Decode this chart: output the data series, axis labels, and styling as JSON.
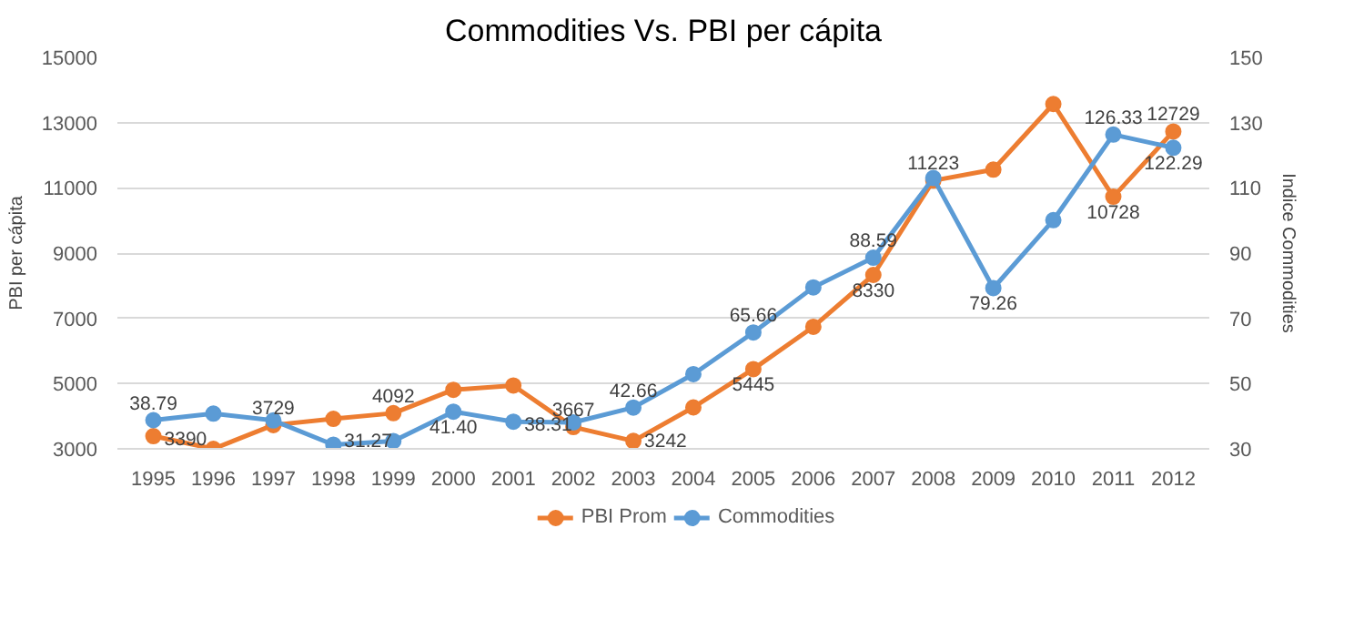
{
  "chart_data": {
    "type": "line",
    "title": "Commodities Vs. PBI per cápita",
    "ylabel": "PBI per cápita",
    "y2label": "Indice Commodities",
    "categories": [
      "1995",
      "1996",
      "1997",
      "1998",
      "1999",
      "2000",
      "2001",
      "2002",
      "2003",
      "2004",
      "2005",
      "2006",
      "2007",
      "2008",
      "2009",
      "2010",
      "2011",
      "2012"
    ],
    "series": [
      {
        "name": "PBI Prom",
        "color": "#ed7d31",
        "values": [
          3390,
          3000,
          3729,
          3920,
          4092,
          4810,
          4940,
          3667,
          3242,
          4270,
          5445,
          6740,
          8330,
          11223,
          11560,
          13570,
          10728,
          12729
        ],
        "value_labels": [
          "3390",
          null,
          "3729",
          null,
          "4092",
          null,
          null,
          "3667",
          "3242",
          null,
          "5445",
          null,
          "8330",
          "11223",
          null,
          null,
          "10728",
          "12729"
        ]
      },
      {
        "name": "Commodities",
        "color": "#5b9bd5",
        "axis": "y2",
        "values": [
          38.79,
          40.8,
          38.7,
          31.27,
          32.4,
          41.4,
          38.31,
          38.1,
          42.66,
          52.9,
          65.66,
          79.5,
          88.59,
          113.0,
          79.26,
          100.1,
          126.33,
          122.29
        ],
        "value_labels": [
          "38.79",
          null,
          null,
          "31.27",
          null,
          "41.40",
          "38.31",
          null,
          "42.66",
          null,
          "65.66",
          null,
          "88.59",
          null,
          "79.26",
          null,
          "126.33",
          "122.29"
        ]
      }
    ],
    "ylim": [
      3000,
      15000
    ],
    "yticks": [
      3000,
      5000,
      7000,
      9000,
      11000,
      13000,
      15000
    ],
    "y2lim": [
      30,
      150
    ],
    "y2ticks": [
      30,
      50,
      70,
      90,
      110,
      130,
      150
    ],
    "grid": "y",
    "legend": "bottom",
    "marker": "circle",
    "line_style": "solid"
  }
}
